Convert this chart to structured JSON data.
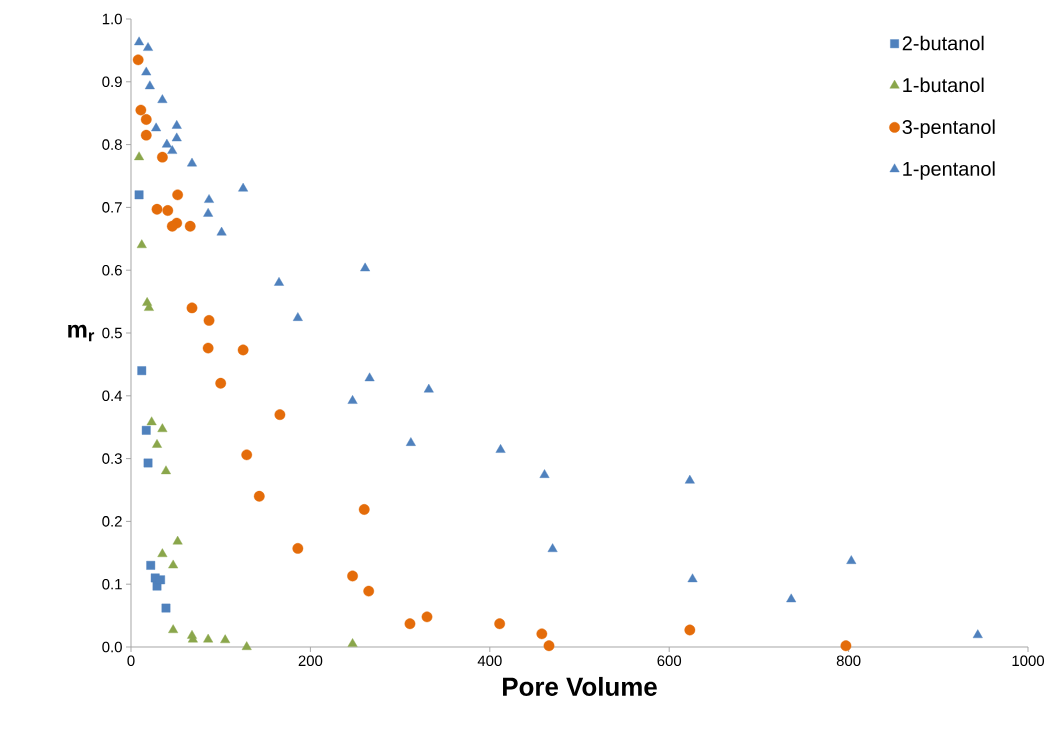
{
  "chart_data": {
    "type": "scatter",
    "xlabel": "Pore Volume",
    "ylabel": "m$_{r}$",
    "xlim": [
      0,
      1000
    ],
    "ylim": [
      0,
      1.0
    ],
    "xticks": [
      0,
      200,
      400,
      600,
      800,
      1000
    ],
    "yticks": [
      {
        "value": 0,
        "label": "0.0"
      },
      {
        "value": 0.1,
        "label": "0.1"
      },
      {
        "value": 0.2,
        "label": "0.2"
      },
      {
        "value": 0.3,
        "label": "0.3"
      },
      {
        "value": 0.4,
        "label": "0.4"
      },
      {
        "value": 0.5,
        "label": "0.5"
      },
      {
        "value": 0.6,
        "label": "0.6"
      },
      {
        "value": 0.7,
        "label": "0.7"
      },
      {
        "value": 0.8,
        "label": "0.8"
      },
      {
        "value": 0.9,
        "label": "0.9"
      },
      {
        "value": 1.0,
        "label": "1.0"
      }
    ],
    "grid": false,
    "legend": "top right",
    "series": [
      {
        "name": "2-butanol",
        "color": "#4f81bd",
        "marker": "square",
        "x": [
          9,
          12,
          17,
          19,
          22,
          27,
          29,
          33,
          39
        ],
        "values": [
          0.72,
          0.44,
          0.345,
          0.293,
          0.13,
          0.11,
          0.097,
          0.107,
          0.062
        ]
      },
      {
        "name": "1-butanol",
        "color": "#8aa64b",
        "marker": "triangle",
        "x": [
          9,
          12,
          18,
          20,
          23,
          35,
          29,
          39,
          52,
          35,
          47,
          47,
          69,
          68,
          86,
          105,
          129,
          247
        ],
        "values": [
          0.78,
          0.64,
          0.548,
          0.54,
          0.358,
          0.347,
          0.322,
          0.28,
          0.168,
          0.148,
          0.13,
          0.027,
          0.012,
          0.018,
          0.012,
          0.011,
          0.0,
          0.005
        ]
      },
      {
        "name": "3-pentanol",
        "color": "#e46c0a",
        "marker": "circle",
        "x": [
          8,
          11,
          17,
          17,
          35,
          29,
          41,
          51,
          46,
          66,
          52,
          68,
          87,
          86,
          125,
          100,
          166,
          129,
          143,
          186,
          247,
          260,
          265,
          311,
          330,
          411,
          458,
          466,
          623,
          797
        ],
        "values": [
          0.935,
          0.855,
          0.84,
          0.815,
          0.78,
          0.697,
          0.695,
          0.675,
          0.67,
          0.67,
          0.72,
          0.54,
          0.52,
          0.476,
          0.473,
          0.42,
          0.37,
          0.306,
          0.24,
          0.157,
          0.113,
          0.219,
          0.089,
          0.037,
          0.048,
          0.037,
          0.021,
          0.002,
          0.027,
          0.002
        ]
      },
      {
        "name": "1-pentanol",
        "color": "#4f81bd",
        "marker": "triangle",
        "x": [
          9,
          19,
          17,
          21,
          35,
          28,
          51,
          40,
          51,
          46,
          68,
          87,
          86,
          101,
          125,
          165,
          186,
          261,
          266,
          247,
          332,
          312,
          412,
          461,
          623,
          470,
          626,
          736,
          803,
          944
        ],
        "values": [
          0.963,
          0.954,
          0.915,
          0.893,
          0.871,
          0.826,
          0.83,
          0.8,
          0.81,
          0.79,
          0.77,
          0.712,
          0.69,
          0.66,
          0.73,
          0.58,
          0.524,
          0.603,
          0.428,
          0.392,
          0.41,
          0.325,
          0.314,
          0.274,
          0.265,
          0.156,
          0.108,
          0.076,
          0.137,
          0.019
        ]
      }
    ]
  }
}
